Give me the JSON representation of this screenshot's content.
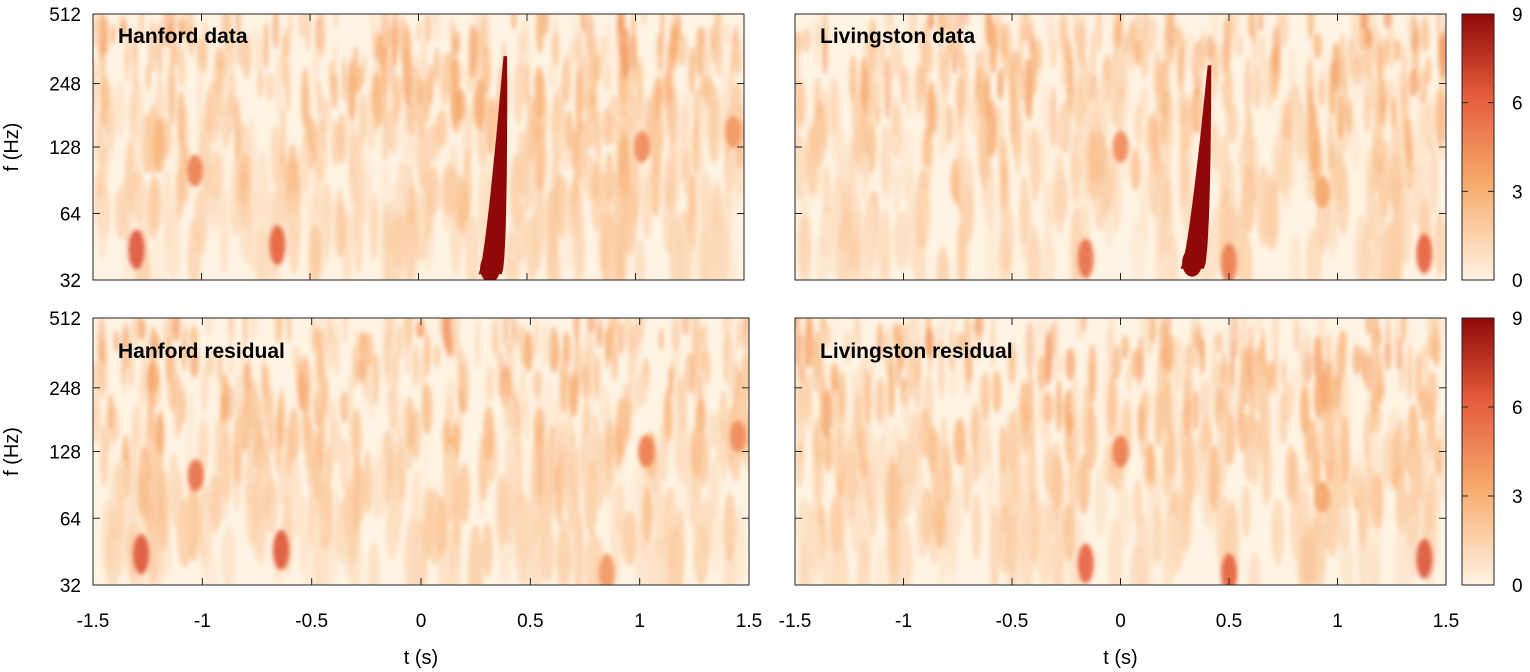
{
  "chart_data": [
    {
      "type": "heatmap",
      "title": "",
      "panel_label": "Hanford data",
      "xlabel": "",
      "ylabel": "f (Hz)",
      "xlim": [
        -1.5,
        1.5
      ],
      "ylim": [
        32,
        512
      ],
      "yscale": "log2",
      "x_ticks": [
        -1.5,
        -1,
        -0.5,
        0,
        0.5,
        1,
        1.5
      ],
      "x_tick_labels": [],
      "y_ticks": [
        32,
        64,
        128,
        248,
        512
      ],
      "y_tick_labels": [
        "32",
        "64",
        "128",
        "248",
        "512"
      ],
      "chirp": {
        "t_start": 0.33,
        "t_end": 0.4,
        "f_start": 34,
        "f_end": 330
      },
      "blobs": [
        {
          "t": -1.3,
          "f": 44,
          "value": 6.5
        },
        {
          "t": -0.65,
          "f": 46,
          "value": 6
        },
        {
          "t": -1.03,
          "f": 100,
          "value": 5
        },
        {
          "t": 1.03,
          "f": 128,
          "value": 4.5
        },
        {
          "t": 1.45,
          "f": 150,
          "value": 4
        }
      ]
    },
    {
      "type": "heatmap",
      "title": "",
      "panel_label": "Livingston data",
      "xlabel": "",
      "ylabel": "",
      "xlim": [
        -1.5,
        1.5
      ],
      "ylim": [
        32,
        512
      ],
      "yscale": "log2",
      "x_ticks": [
        -1.5,
        -1,
        -0.5,
        0,
        0.5,
        1,
        1.5
      ],
      "x_tick_labels": [],
      "y_ticks": [
        32,
        64,
        128,
        248,
        512
      ],
      "y_tick_labels": [],
      "chirp": {
        "t_start": 0.33,
        "t_end": 0.41,
        "f_start": 36,
        "f_end": 300
      },
      "blobs": [
        {
          "t": 0.5,
          "f": 38,
          "value": 5
        },
        {
          "t": -0.16,
          "f": 40,
          "value": 5.5
        },
        {
          "t": 1.4,
          "f": 42,
          "value": 6
        },
        {
          "t": 0,
          "f": 128,
          "value": 4.5
        },
        {
          "t": 0.93,
          "f": 80,
          "value": 3.5
        }
      ],
      "colorbar": {
        "min": 0,
        "max": 9,
        "ticks": [
          0,
          3,
          6,
          9
        ],
        "tick_labels": [
          "0",
          "3",
          "6",
          "9"
        ]
      }
    },
    {
      "type": "heatmap",
      "title": "",
      "panel_label": "Hanford residual",
      "xlabel": "t (s)",
      "ylabel": "f (Hz)",
      "xlim": [
        -1.5,
        1.5
      ],
      "ylim": [
        32,
        512
      ],
      "yscale": "log2",
      "x_ticks": [
        -1.5,
        -1,
        -0.5,
        0,
        0.5,
        1,
        1.5
      ],
      "x_tick_labels": [
        "-1.5",
        "-1",
        "-0.5",
        "0",
        "0.5",
        "1",
        "1.5"
      ],
      "y_ticks": [
        32,
        64,
        128,
        248,
        512
      ],
      "y_tick_labels": [
        "32",
        "64",
        "128",
        "248",
        "512"
      ],
      "blobs": [
        {
          "t": -1.28,
          "f": 44,
          "value": 6.5
        },
        {
          "t": -0.64,
          "f": 46,
          "value": 6.5
        },
        {
          "t": -1.03,
          "f": 100,
          "value": 5.5
        },
        {
          "t": 1.03,
          "f": 128,
          "value": 5
        },
        {
          "t": 1.45,
          "f": 150,
          "value": 4.5
        },
        {
          "t": 0.85,
          "f": 36,
          "value": 4
        }
      ]
    },
    {
      "type": "heatmap",
      "title": "",
      "panel_label": "Livingston residual",
      "xlabel": "t (s)",
      "ylabel": "",
      "xlim": [
        -1.5,
        1.5
      ],
      "ylim": [
        32,
        512
      ],
      "yscale": "log2",
      "x_ticks": [
        -1.5,
        -1,
        -0.5,
        0,
        0.5,
        1,
        1.5
      ],
      "x_tick_labels": [
        "-1.5",
        "-1",
        "-0.5",
        "0",
        "0.5",
        "1",
        "1.5"
      ],
      "y_ticks": [
        32,
        64,
        128,
        248,
        512
      ],
      "y_tick_labels": [],
      "blobs": [
        {
          "t": -0.16,
          "f": 40,
          "value": 6
        },
        {
          "t": 0.5,
          "f": 36,
          "value": 6
        },
        {
          "t": 1.4,
          "f": 42,
          "value": 6.5
        },
        {
          "t": 0,
          "f": 128,
          "value": 5
        },
        {
          "t": 0.93,
          "f": 80,
          "value": 3.5
        }
      ],
      "colorbar": {
        "min": 0,
        "max": 9,
        "ticks": [
          0,
          3,
          6,
          9
        ],
        "tick_labels": [
          "0",
          "3",
          "6",
          "9"
        ]
      }
    }
  ],
  "colors": {
    "low": "#fff3e3",
    "mid": "#f7ae70",
    "high": "#e35a3a",
    "max": "#8f0909"
  }
}
